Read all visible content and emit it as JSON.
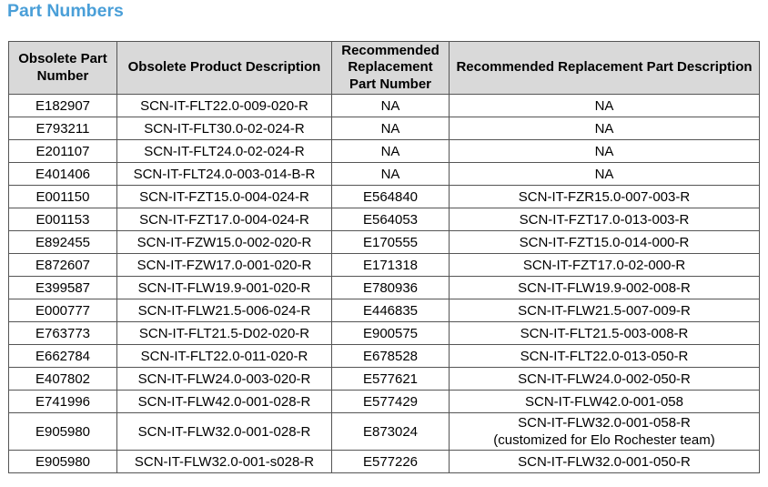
{
  "title": "Part Numbers",
  "headers": [
    "Obsolete Part Number",
    "Obsolete Product Description",
    "Recommended Replacement Part Number",
    "Recommended Replacement Part Description"
  ],
  "rows": [
    {
      "obsolete_part": "E182907",
      "obsolete_desc": "SCN-IT-FLT22.0-009-020-R",
      "replacement_part": "NA",
      "replacement_desc": "NA"
    },
    {
      "obsolete_part": "E793211",
      "obsolete_desc": "SCN-IT-FLT30.0-02-024-R",
      "replacement_part": "NA",
      "replacement_desc": "NA"
    },
    {
      "obsolete_part": "E201107",
      "obsolete_desc": "SCN-IT-FLT24.0-02-024-R",
      "replacement_part": "NA",
      "replacement_desc": "NA"
    },
    {
      "obsolete_part": "E401406",
      "obsolete_desc": "SCN-IT-FLT24.0-003-014-B-R",
      "replacement_part": "NA",
      "replacement_desc": "NA"
    },
    {
      "obsolete_part": "E001150",
      "obsolete_desc": "SCN-IT-FZT15.0-004-024-R",
      "replacement_part": "E564840",
      "replacement_desc": "SCN-IT-FZR15.0-007-003-R"
    },
    {
      "obsolete_part": "E001153",
      "obsolete_desc": "SCN-IT-FZT17.0-004-024-R",
      "replacement_part": "E564053",
      "replacement_desc": "SCN-IT-FZT17.0-013-003-R"
    },
    {
      "obsolete_part": "E892455",
      "obsolete_desc": "SCN-IT-FZW15.0-002-020-R",
      "replacement_part": "E170555",
      "replacement_desc": "SCN-IT-FZT15.0-014-000-R"
    },
    {
      "obsolete_part": "E872607",
      "obsolete_desc": "SCN-IT-FZW17.0-001-020-R",
      "replacement_part": "E171318",
      "replacement_desc": "SCN-IT-FZT17.0-02-000-R"
    },
    {
      "obsolete_part": "E399587",
      "obsolete_desc": "SCN-IT-FLW19.9-001-020-R",
      "replacement_part": "E780936",
      "replacement_desc": "SCN-IT-FLW19.9-002-008-R"
    },
    {
      "obsolete_part": "E000777",
      "obsolete_desc": "SCN-IT-FLW21.5-006-024-R",
      "replacement_part": "E446835",
      "replacement_desc": "SCN-IT-FLW21.5-007-009-R"
    },
    {
      "obsolete_part": "E763773",
      "obsolete_desc": "SCN-IT-FLT21.5-D02-020-R",
      "replacement_part": "E900575",
      "replacement_desc": "SCN-IT-FLT21.5-003-008-R"
    },
    {
      "obsolete_part": "E662784",
      "obsolete_desc": "SCN-IT-FLT22.0-011-020-R",
      "replacement_part": "E678528",
      "replacement_desc": "SCN-IT-FLT22.0-013-050-R"
    },
    {
      "obsolete_part": "E407802",
      "obsolete_desc": "SCN-IT-FLW24.0-003-020-R",
      "replacement_part": "E577621",
      "replacement_desc": "SCN-IT-FLW24.0-002-050-R"
    },
    {
      "obsolete_part": "E741996",
      "obsolete_desc": "SCN-IT-FLW42.0-001-028-R",
      "replacement_part": "E577429",
      "replacement_desc": "SCN-IT-FLW42.0-001-058"
    },
    {
      "obsolete_part": "E905980",
      "obsolete_desc": "SCN-IT-FLW32.0-001-028-R",
      "replacement_part": "E873024",
      "replacement_desc": "SCN-IT-FLW32.0-001-058-R",
      "replacement_note": "(customized for Elo Rochester team)"
    },
    {
      "obsolete_part": "E905980",
      "obsolete_desc": "SCN-IT-FLW32.0-001-s028-R",
      "replacement_part": "E577226",
      "replacement_desc": "SCN-IT-FLW32.0-001-050-R"
    }
  ]
}
